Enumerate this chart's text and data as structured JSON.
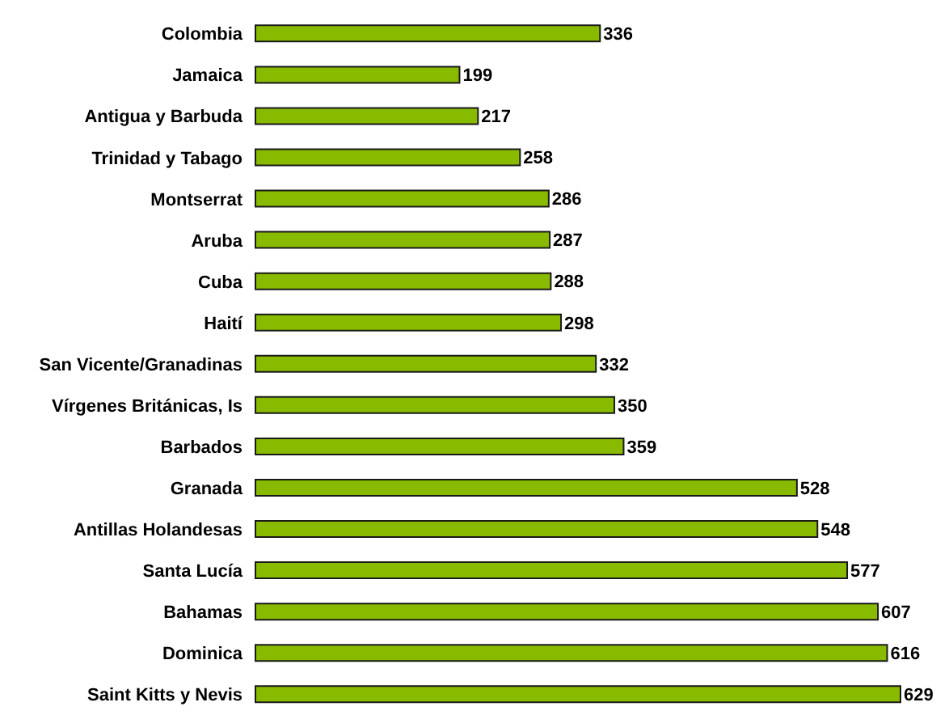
{
  "chart_data": {
    "type": "bar",
    "orientation": "horizontal",
    "categories": [
      "Colombia",
      "Jamaica",
      "Antigua y Barbuda",
      "Trinidad y Tabago",
      "Montserrat",
      "Aruba",
      "Cuba",
      "Haití",
      "San Vicente/Granadinas",
      "Vírgenes Británicas, Is",
      "Barbados",
      "Granada",
      "Antillas Holandesas",
      "Santa Lucía",
      "Bahamas",
      "Dominica",
      "Saint Kitts y Nevis"
    ],
    "values": [
      336,
      199,
      217,
      258,
      286,
      287,
      288,
      298,
      332,
      350,
      359,
      528,
      548,
      577,
      607,
      616,
      629
    ],
    "color": "#88bb00",
    "data_labels": true
  }
}
